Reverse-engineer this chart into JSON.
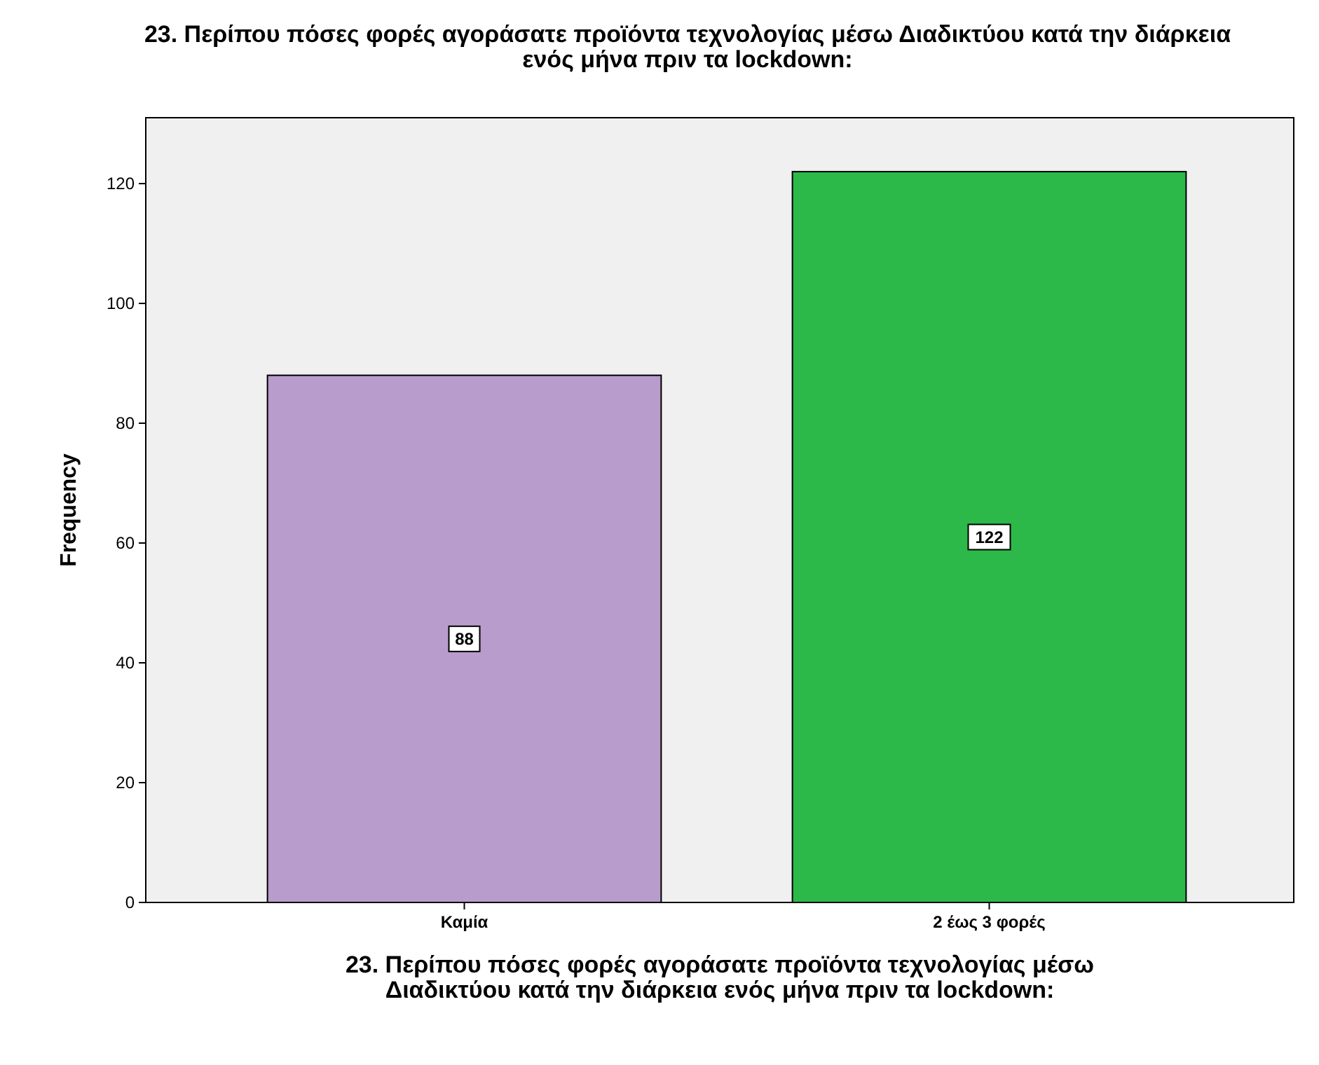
{
  "chart_data": {
    "type": "bar",
    "title": "23. Περίπου πόσες φορές αγοράσατε προϊόντα τεχνολογίας μέσω Διαδικτύου κατά την διάρκεια ενός μήνα πριν τα lockdown:",
    "xlabel": "23. Περίπου πόσες φορές αγοράσατε προϊόντα τεχνολογίας μέσω Διαδικτύου κατά την διάρκεια ενός μήνα πριν τα lockdown:",
    "ylabel": "Frequency",
    "categories": [
      "Καμία",
      "2 έως 3 φορές"
    ],
    "values": [
      88,
      122
    ],
    "colors": [
      "#b89ccb",
      "#2db84a"
    ],
    "ylim": [
      0,
      131
    ],
    "yticks": [
      0,
      20,
      40,
      60,
      80,
      100,
      120
    ],
    "data_labels": true
  }
}
